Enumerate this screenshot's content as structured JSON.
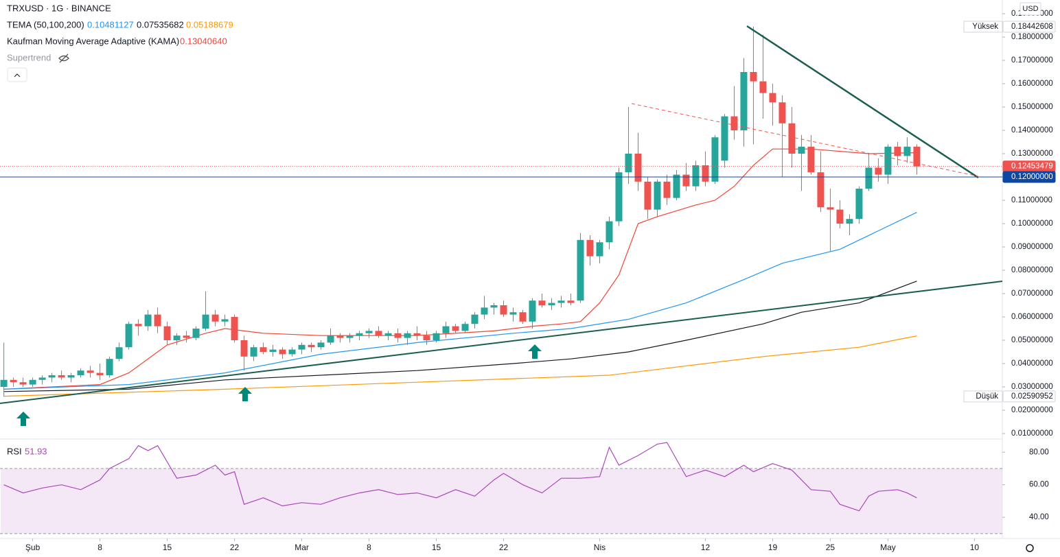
{
  "chart_data": {
    "type": "candlestick",
    "title": "TRXUSD · 1G · BINANCE",
    "currency": "USD",
    "legend": {
      "tema": "TEMA (50,100,200)",
      "tema_values": [
        "0.10481127",
        "0.07535682",
        "0.05188679"
      ],
      "kama": "Kaufman Moving Average Adaptive (KAMA)",
      "kama_value": "0.13040640",
      "supertrend": "Supertrend",
      "rsi": "RSI",
      "rsi_value": "51.93"
    },
    "up_color": "#26a69a",
    "down_color": "#ef5350",
    "x": [
      -3,
      -2,
      -1,
      0,
      1,
      2,
      3,
      4,
      5,
      6,
      7,
      8,
      9,
      10,
      11,
      12,
      13,
      14,
      15,
      16,
      17,
      18,
      19,
      20,
      21,
      22,
      23,
      24,
      25,
      26,
      27,
      28,
      29,
      30,
      31,
      32,
      33,
      34,
      35,
      36,
      37,
      38,
      39,
      40,
      41,
      42,
      43,
      44,
      45,
      46,
      47,
      48,
      49,
      50,
      51,
      52,
      53,
      54,
      55,
      56,
      57,
      58,
      59,
      60,
      61,
      62,
      63,
      64,
      65,
      66,
      67,
      68,
      69,
      70,
      71,
      72,
      73,
      74,
      75,
      76,
      77,
      78,
      79,
      80,
      81,
      82,
      83,
      84,
      85,
      86,
      87,
      88,
      89,
      90,
      91,
      92
    ],
    "candles": [
      [
        0.03,
        0.049,
        0.0259,
        0.033
      ],
      [
        0.033,
        0.034,
        0.03,
        0.032
      ],
      [
        0.032,
        0.034,
        0.03,
        0.031
      ],
      [
        0.031,
        0.034,
        0.03,
        0.033
      ],
      [
        0.033,
        0.035,
        0.031,
        0.034
      ],
      [
        0.034,
        0.036,
        0.032,
        0.035
      ],
      [
        0.035,
        0.037,
        0.033,
        0.034
      ],
      [
        0.034,
        0.036,
        0.032,
        0.035
      ],
      [
        0.035,
        0.038,
        0.034,
        0.037
      ],
      [
        0.037,
        0.039,
        0.034,
        0.036
      ],
      [
        0.036,
        0.04,
        0.033,
        0.035
      ],
      [
        0.035,
        0.043,
        0.034,
        0.042
      ],
      [
        0.042,
        0.049,
        0.041,
        0.047
      ],
      [
        0.047,
        0.058,
        0.046,
        0.057
      ],
      [
        0.057,
        0.059,
        0.052,
        0.056
      ],
      [
        0.056,
        0.063,
        0.054,
        0.061
      ],
      [
        0.061,
        0.064,
        0.053,
        0.056
      ],
      [
        0.056,
        0.058,
        0.048,
        0.05
      ],
      [
        0.05,
        0.053,
        0.048,
        0.052
      ],
      [
        0.052,
        0.054,
        0.049,
        0.051
      ],
      [
        0.051,
        0.056,
        0.05,
        0.055
      ],
      [
        0.055,
        0.071,
        0.054,
        0.061
      ],
      [
        0.061,
        0.063,
        0.056,
        0.058
      ],
      [
        0.058,
        0.061,
        0.056,
        0.059
      ],
      [
        0.06,
        0.061,
        0.049,
        0.05
      ],
      [
        0.05,
        0.052,
        0.037,
        0.043
      ],
      [
        0.043,
        0.048,
        0.041,
        0.047
      ],
      [
        0.047,
        0.049,
        0.044,
        0.045
      ],
      [
        0.045,
        0.048,
        0.043,
        0.046
      ],
      [
        0.046,
        0.047,
        0.042,
        0.044
      ],
      [
        0.044,
        0.047,
        0.043,
        0.046
      ],
      [
        0.046,
        0.049,
        0.044,
        0.048
      ],
      [
        0.048,
        0.049,
        0.045,
        0.047
      ],
      [
        0.047,
        0.05,
        0.046,
        0.049
      ],
      [
        0.049,
        0.055,
        0.048,
        0.052
      ],
      [
        0.052,
        0.053,
        0.049,
        0.051
      ],
      [
        0.051,
        0.053,
        0.049,
        0.052
      ],
      [
        0.052,
        0.054,
        0.05,
        0.053
      ],
      [
        0.053,
        0.055,
        0.051,
        0.054
      ],
      [
        0.054,
        0.056,
        0.051,
        0.052
      ],
      [
        0.052,
        0.054,
        0.05,
        0.053
      ],
      [
        0.053,
        0.055,
        0.049,
        0.051
      ],
      [
        0.051,
        0.054,
        0.048,
        0.053
      ],
      [
        0.053,
        0.056,
        0.05,
        0.052
      ],
      [
        0.052,
        0.054,
        0.048,
        0.05
      ],
      [
        0.05,
        0.054,
        0.049,
        0.053
      ],
      [
        0.053,
        0.058,
        0.051,
        0.056
      ],
      [
        0.056,
        0.057,
        0.053,
        0.054
      ],
      [
        0.054,
        0.058,
        0.053,
        0.057
      ],
      [
        0.057,
        0.062,
        0.055,
        0.061
      ],
      [
        0.061,
        0.069,
        0.059,
        0.064
      ],
      [
        0.064,
        0.066,
        0.061,
        0.065
      ],
      [
        0.065,
        0.067,
        0.06,
        0.061
      ],
      [
        0.061,
        0.064,
        0.058,
        0.062
      ],
      [
        0.062,
        0.063,
        0.057,
        0.058
      ],
      [
        0.058,
        0.068,
        0.055,
        0.067
      ],
      [
        0.067,
        0.07,
        0.064,
        0.065
      ],
      [
        0.065,
        0.068,
        0.063,
        0.066
      ],
      [
        0.066,
        0.069,
        0.064,
        0.067
      ],
      [
        0.067,
        0.07,
        0.065,
        0.066
      ],
      [
        0.067,
        0.096,
        0.066,
        0.093
      ],
      [
        0.093,
        0.095,
        0.082,
        0.086
      ],
      [
        0.086,
        0.093,
        0.083,
        0.092
      ],
      [
        0.092,
        0.103,
        0.089,
        0.101
      ],
      [
        0.101,
        0.124,
        0.099,
        0.122
      ],
      [
        0.122,
        0.15,
        0.117,
        0.13
      ],
      [
        0.13,
        0.139,
        0.114,
        0.118
      ],
      [
        0.118,
        0.12,
        0.102,
        0.106
      ],
      [
        0.106,
        0.119,
        0.103,
        0.118
      ],
      [
        0.118,
        0.121,
        0.108,
        0.111
      ],
      [
        0.111,
        0.123,
        0.11,
        0.121
      ],
      [
        0.121,
        0.126,
        0.114,
        0.116
      ],
      [
        0.116,
        0.127,
        0.114,
        0.125
      ],
      [
        0.125,
        0.131,
        0.116,
        0.118
      ],
      [
        0.118,
        0.138,
        0.117,
        0.137
      ],
      [
        0.127,
        0.147,
        0.124,
        0.146
      ],
      [
        0.146,
        0.159,
        0.136,
        0.14
      ],
      [
        0.14,
        0.171,
        0.133,
        0.165
      ],
      [
        0.165,
        0.18442608,
        0.134,
        0.161
      ],
      [
        0.161,
        0.181,
        0.145,
        0.156
      ],
      [
        0.156,
        0.16,
        0.142,
        0.152
      ],
      [
        0.152,
        0.155,
        0.12,
        0.143
      ],
      [
        0.143,
        0.15,
        0.124,
        0.13
      ],
      [
        0.13,
        0.138,
        0.114,
        0.133
      ],
      [
        0.133,
        0.138,
        0.121,
        0.122
      ],
      [
        0.122,
        0.131,
        0.105,
        0.107
      ],
      [
        0.107,
        0.115,
        0.088,
        0.106
      ],
      [
        0.106,
        0.11,
        0.098,
        0.1
      ],
      [
        0.1,
        0.104,
        0.095,
        0.102
      ],
      [
        0.102,
        0.116,
        0.1,
        0.115
      ],
      [
        0.115,
        0.13,
        0.114,
        0.124
      ],
      [
        0.124,
        0.128,
        0.118,
        0.121
      ],
      [
        0.121,
        0.134,
        0.117,
        0.133
      ],
      [
        0.133,
        0.135,
        0.125,
        0.129
      ],
      [
        0.129,
        0.137,
        0.126,
        0.133
      ],
      [
        0.133,
        0.134,
        0.121,
        0.12453479
      ]
    ],
    "series": [
      {
        "color": "#f44336",
        "x": [
          -3,
          7,
          10,
          14,
          18,
          20,
          24,
          30,
          40,
          48,
          52,
          55,
          57,
          59,
          61,
          63,
          65,
          69,
          71,
          73,
          75,
          77,
          81,
          87,
          92
        ],
        "values": [
          0.029,
          0.031,
          0.036,
          0.048,
          0.053,
          0.055,
          0.053,
          0.052,
          0.052,
          0.054,
          0.056,
          0.057,
          0.058,
          0.066,
          0.078,
          0.1,
          0.103,
          0.108,
          0.11,
          0.116,
          0.125,
          0.132,
          0.132,
          0.13,
          0.1304064
        ]
      },
      {
        "color": "#2196f3",
        "x": [
          -3,
          10,
          20,
          30,
          40,
          50,
          56,
          62,
          68,
          74,
          78,
          84,
          92
        ],
        "values": [
          0.029,
          0.031,
          0.036,
          0.044,
          0.049,
          0.053,
          0.055,
          0.059,
          0.066,
          0.076,
          0.083,
          0.089,
          0.10481127
        ]
      },
      {
        "color": "#131722",
        "x": [
          -3,
          10,
          20,
          40,
          50,
          56,
          62,
          68,
          76,
          80,
          86,
          92
        ],
        "values": [
          0.028,
          0.029,
          0.033,
          0.037,
          0.04,
          0.042,
          0.045,
          0.05,
          0.057,
          0.062,
          0.066,
          0.07535682
        ]
      },
      {
        "color": "#ff9800",
        "x": [
          -3,
          20,
          40,
          60,
          66,
          76,
          86,
          92
        ],
        "values": [
          0.026,
          0.029,
          0.032,
          0.035,
          0.038,
          0.043,
          0.047,
          0.05188679
        ]
      }
    ],
    "xlim": [
      -3.4,
      100.9
    ],
    "ylim": [
      0.01,
      0.19
    ],
    "yticks": [
      {
        "value": 0.01,
        "label": "0.01000000"
      },
      {
        "value": 0.02,
        "label": "0.02000000"
      },
      {
        "value": 0.03,
        "label": "0.03000000"
      },
      {
        "value": 0.04,
        "label": "0.04000000"
      },
      {
        "value": 0.05,
        "label": "0.05000000"
      },
      {
        "value": 0.06,
        "label": "0.06000000"
      },
      {
        "value": 0.07,
        "label": "0.07000000"
      },
      {
        "value": 0.08,
        "label": "0.08000000"
      },
      {
        "value": 0.09,
        "label": "0.09000000"
      },
      {
        "value": 0.1,
        "label": "0.10000000"
      },
      {
        "value": 0.11,
        "label": "0.11000000"
      },
      {
        "value": 0.12,
        "label": "0.12000000"
      },
      {
        "value": 0.13,
        "label": "0.13000000"
      },
      {
        "value": 0.14,
        "label": "0.14000000"
      },
      {
        "value": 0.15,
        "label": "0.15000000"
      },
      {
        "value": 0.16,
        "label": "0.16000000"
      },
      {
        "value": 0.17,
        "label": "0.17000000"
      },
      {
        "value": 0.18,
        "label": "0.18000000"
      },
      {
        "value": 0.19,
        "label": "0.19000000"
      }
    ],
    "xticks": [
      {
        "value": 0,
        "label": "Şub"
      },
      {
        "value": 7,
        "label": "8"
      },
      {
        "value": 14,
        "label": "15"
      },
      {
        "value": 21,
        "label": "22"
      },
      {
        "value": 28,
        "label": "Mar"
      },
      {
        "value": 35,
        "label": "8"
      },
      {
        "value": 42,
        "label": "15"
      },
      {
        "value": 49,
        "label": "22"
      },
      {
        "value": 59,
        "label": "Nis"
      },
      {
        "value": 70,
        "label": "12"
      },
      {
        "value": 77,
        "label": "19"
      },
      {
        "value": 83,
        "label": "25"
      },
      {
        "value": 89,
        "label": "May"
      },
      {
        "value": 98,
        "label": "10"
      }
    ],
    "price_tags": [
      {
        "caption": "Yüksek",
        "value": 0.18442608,
        "label": "0.18442608",
        "color": "#ffffff"
      },
      {
        "caption": "Düşük",
        "value": 0.02590952,
        "label": "0.02590952",
        "color": "#ffffff"
      },
      {
        "value": 0.12453479,
        "label": "0.12453479",
        "color": "#ef5350"
      },
      {
        "value": 0.12,
        "label": "0.12000000",
        "color": "#0d47a1"
      }
    ],
    "rsi": {
      "color": "#ab47bc",
      "ylim": [
        27,
        86
      ],
      "band": [
        30,
        70
      ],
      "yticks": [
        {
          "value": 80,
          "label": "80.00"
        },
        {
          "value": 60,
          "label": "60.00"
        },
        {
          "value": 40,
          "label": "40.00"
        }
      ],
      "x": [
        -3,
        -1,
        1,
        3,
        5,
        7,
        8,
        10,
        11,
        12,
        13,
        15,
        17,
        19,
        20,
        21,
        22,
        24,
        26,
        28,
        30,
        32,
        34,
        36,
        38,
        40,
        42,
        44,
        46,
        48,
        49,
        51,
        53,
        55,
        57,
        59,
        60,
        61,
        63,
        65,
        66,
        68,
        70,
        72,
        74,
        75,
        77,
        79,
        81,
        83,
        84,
        86,
        87,
        88,
        90,
        91,
        92
      ],
      "values": [
        60,
        55,
        58,
        60,
        57,
        63,
        70,
        76,
        84,
        81,
        84,
        64,
        66,
        72,
        66,
        68,
        48,
        52,
        47,
        49,
        48,
        52,
        55,
        57,
        54,
        55,
        52,
        57,
        53,
        63,
        67,
        60,
        55,
        64,
        64,
        65,
        83,
        72,
        78,
        85,
        86,
        65,
        69,
        65,
        72,
        68,
        73,
        69,
        57,
        56,
        48,
        44,
        53,
        56,
        57,
        55,
        51.93
      ]
    }
  }
}
